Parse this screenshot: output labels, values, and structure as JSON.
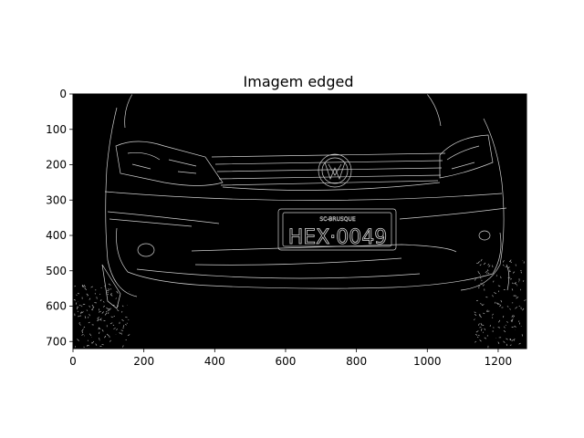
{
  "chart_data": {
    "type": "image",
    "title": "Imagem edged",
    "xlabel": "",
    "ylabel": "",
    "image_width": 1280,
    "image_height": 720,
    "xlim": [
      0,
      1280
    ],
    "ylim": [
      720,
      0
    ],
    "xticks": [
      0,
      200,
      400,
      600,
      800,
      1000,
      1200
    ],
    "yticks": [
      0,
      100,
      200,
      300,
      400,
      500,
      600,
      700
    ],
    "colormap": "gray",
    "license_plate_text": "HEX·0049",
    "plate_header_text": "SC-BRUSQUE"
  },
  "colors": {
    "background": "#000000",
    "edge": "#d0d0d0",
    "axis": "#000000"
  }
}
